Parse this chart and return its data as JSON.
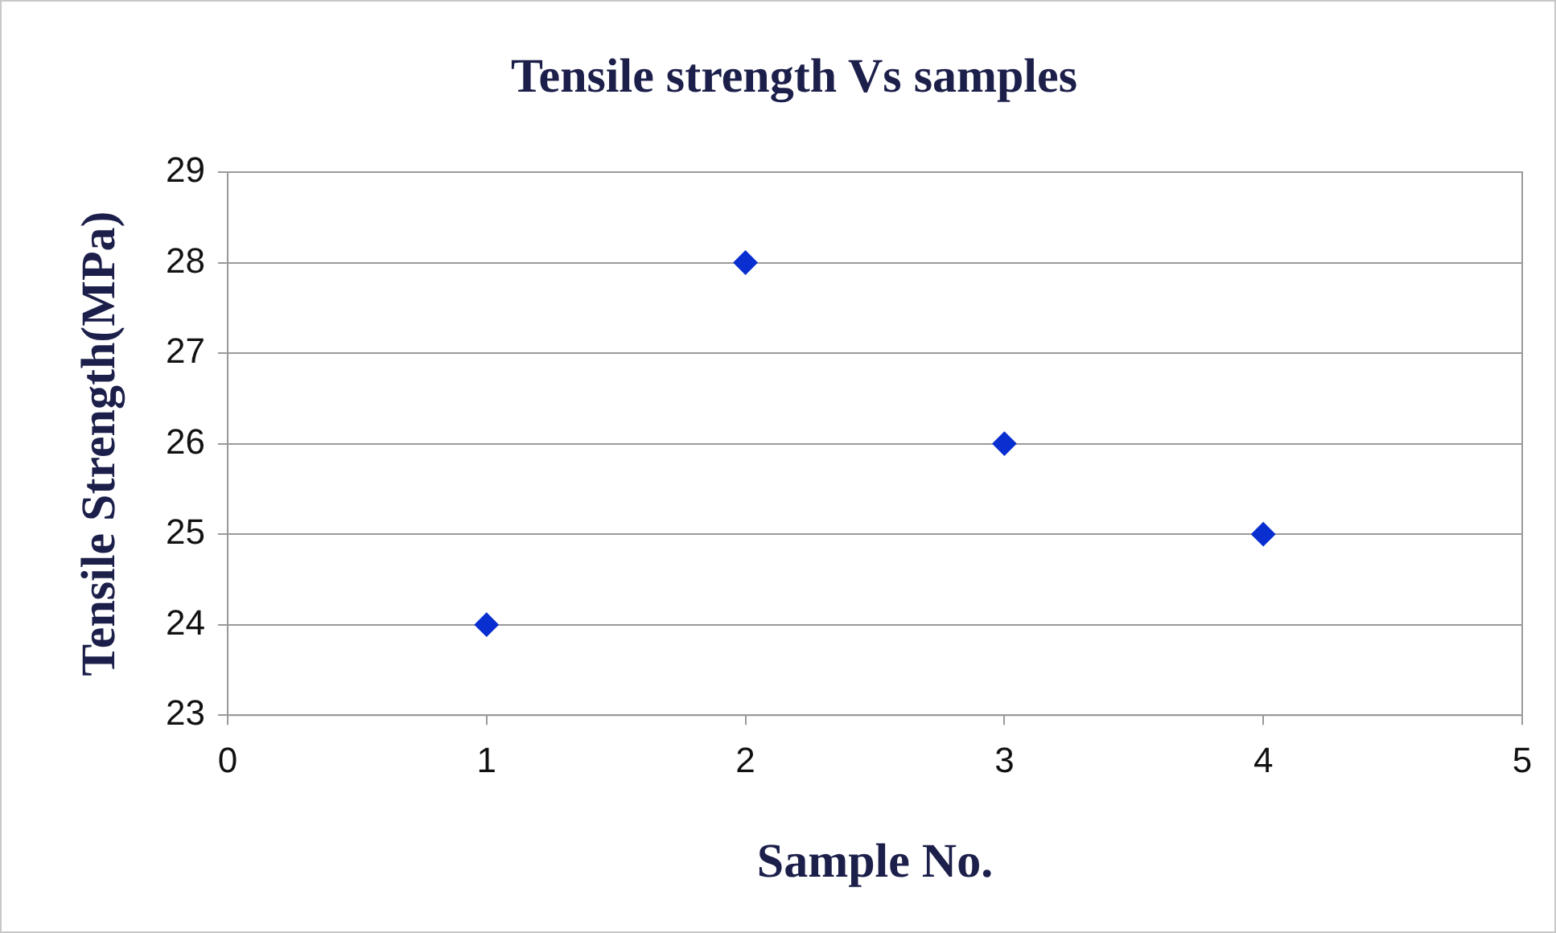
{
  "chart_data": {
    "type": "scatter",
    "title": "Tensile strength Vs samples",
    "xlabel": "Sample No.",
    "ylabel": "Tensile Strength(MPa)",
    "x": [
      1,
      2,
      3,
      4
    ],
    "series": [
      {
        "color": "#0a2fd0",
        "values": [
          24,
          28,
          26,
          25
        ]
      }
    ],
    "xlim": [
      0,
      5
    ],
    "xticks": [
      0,
      1,
      2,
      3,
      4,
      5
    ],
    "ylim": [
      23,
      29
    ],
    "yticks": [
      23,
      24,
      25,
      26,
      27,
      28,
      29
    ],
    "grid": "y",
    "legend": false,
    "marker": "diamond"
  }
}
